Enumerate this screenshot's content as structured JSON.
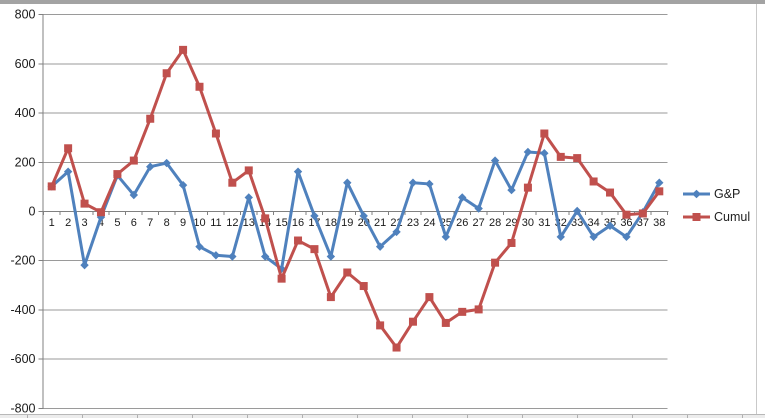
{
  "chart_data": {
    "type": "line",
    "title": "",
    "xlabel": "",
    "ylabel": "",
    "x_tick_labels": [
      "1",
      "2",
      "3",
      "4",
      "5",
      "6",
      "7",
      "8",
      "9",
      "10",
      "11",
      "12",
      "13",
      "14",
      "15",
      "16",
      "17",
      "18",
      "19",
      "20",
      "21",
      "22",
      "23",
      "24",
      "25",
      "26",
      "27",
      "28",
      "29",
      "30",
      "31",
      "32",
      "33",
      "34",
      "35",
      "36",
      "37",
      "38"
    ],
    "y_tick_values": [
      800,
      600,
      400,
      200,
      0,
      -200,
      -400,
      -600,
      -800
    ],
    "y_tick_labels": [
      "800",
      "600",
      "400",
      "200",
      "0",
      "-200",
      "-400",
      "-600",
      "-800"
    ],
    "ylim": [
      -800,
      800
    ],
    "grid": true,
    "legend_position": "right",
    "series": [
      {
        "name": "G&P",
        "color": "#4f81bd",
        "marker": "diamond",
        "values": [
          100,
          160,
          -220,
          -25,
          145,
          65,
          180,
          195,
          105,
          -145,
          -180,
          -185,
          55,
          -185,
          -235,
          160,
          -20,
          -185,
          115,
          -20,
          -145,
          -85,
          115,
          110,
          -105,
          55,
          10,
          205,
          85,
          240,
          235,
          -105,
          0,
          -105,
          -60,
          -105,
          -5,
          115
        ]
      },
      {
        "name": "Cumul",
        "color": "#c0504d",
        "marker": "square",
        "values": [
          100,
          255,
          30,
          -5,
          150,
          205,
          375,
          560,
          655,
          505,
          315,
          115,
          165,
          -30,
          -275,
          -120,
          -155,
          -350,
          -250,
          -305,
          -465,
          -555,
          -450,
          -350,
          -455,
          -410,
          -400,
          -210,
          -130,
          95,
          315,
          220,
          215,
          120,
          75,
          -15,
          -10,
          80
        ]
      }
    ],
    "axis_color": "#808080",
    "gridline_color": "#9a9a9a",
    "tick_label_color": "#1a1a1a"
  }
}
